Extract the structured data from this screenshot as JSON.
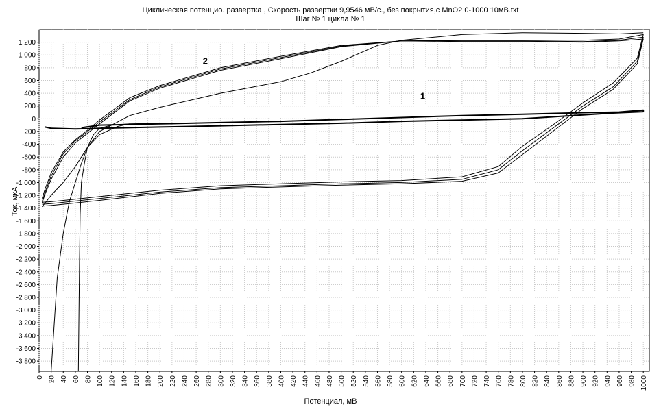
{
  "chart_data": {
    "type": "line",
    "title": "Циклическая потенцио. развертка , Скорость развертки 9,9546 мВ/с., без покрытия,с  MnO2 0-1000 10мВ.txt",
    "subtitle": "Шаг № 1 цикла № 1",
    "xlabel": "Потенциал, мВ",
    "ylabel": "Ток, мкА",
    "xlim": [
      0,
      1010
    ],
    "ylim": [
      -3960,
      1400
    ],
    "grid": true,
    "x_ticks": [
      "0",
      "20",
      "40",
      "60",
      "80",
      "100",
      "120",
      "140",
      "160",
      "180",
      "200",
      "220",
      "240",
      "260",
      "280",
      "300",
      "320",
      "340",
      "360",
      "380",
      "400",
      "420",
      "440",
      "460",
      "480",
      "500",
      "520",
      "540",
      "560",
      "580",
      "600",
      "620",
      "640",
      "660",
      "680",
      "700",
      "720",
      "740",
      "760",
      "780",
      "800",
      "820",
      "840",
      "860",
      "880",
      "900",
      "920",
      "940",
      "960",
      "980",
      "1000"
    ],
    "y_ticks": [
      "1 200",
      "1 000",
      "800",
      "600",
      "400",
      "200",
      "0",
      "-200",
      "-400",
      "-600",
      "-800",
      "-1 000",
      "-1 200",
      "-1 400",
      "-1 600",
      "-1 800",
      "-2 000",
      "-2 200",
      "-2 400",
      "-2 600",
      "-2 800",
      "-3 000",
      "-3 200",
      "-3 400",
      "-3 600",
      "-3 800"
    ],
    "annotations": [
      {
        "text": "2",
        "x": 275,
        "y": 860
      },
      {
        "text": "1",
        "x": 635,
        "y": 310
      }
    ],
    "series": [
      {
        "x": [
          70,
          100,
          200,
          300,
          400,
          500,
          600,
          700,
          800,
          900,
          960,
          1000,
          1000,
          950,
          900,
          800,
          700,
          600,
          500,
          400,
          300,
          200,
          100,
          60,
          20,
          10
        ],
        "y": [
          -140,
          -100,
          -80,
          -60,
          -40,
          -10,
          20,
          50,
          70,
          95,
          105,
          135,
          110,
          90,
          60,
          0,
          -20,
          -40,
          -70,
          -90,
          -110,
          -130,
          -150,
          -160,
          -150,
          -130
        ]
      },
      {
        "x": [
          65,
          66,
          67,
          68,
          70,
          75,
          80,
          90,
          100,
          120,
          150,
          200
        ],
        "y": [
          -3960,
          -3000,
          -2200,
          -1500,
          -1000,
          -700,
          -450,
          -250,
          -150,
          -100,
          -80,
          -70
        ]
      },
      {
        "x": [
          5,
          10,
          20,
          40,
          60,
          80,
          100,
          150,
          200,
          300,
          400,
          500,
          600,
          700,
          800,
          900,
          960,
          1000,
          990,
          950,
          900,
          850,
          800,
          760,
          700,
          600,
          500,
          400,
          300,
          200,
          100,
          50,
          20,
          5
        ],
        "y": [
          -1300,
          -1150,
          -900,
          -550,
          -350,
          -200,
          -50,
          300,
          500,
          780,
          960,
          1140,
          1220,
          1220,
          1220,
          1210,
          1230,
          1280,
          900,
          500,
          200,
          -150,
          -500,
          -800,
          -950,
          -1000,
          -1020,
          -1050,
          -1080,
          -1150,
          -1250,
          -1300,
          -1330,
          -1340
        ]
      },
      {
        "x": [
          5,
          10,
          20,
          40,
          60,
          80,
          100,
          150,
          200,
          300,
          400,
          500,
          600,
          700,
          800,
          900,
          960,
          1000,
          990,
          950,
          900,
          850,
          800,
          760,
          700,
          600,
          500,
          400,
          300,
          200,
          100,
          50,
          20,
          5
        ],
        "y": [
          -1250,
          -1100,
          -850,
          -520,
          -330,
          -180,
          -20,
          330,
          520,
          800,
          980,
          1150,
          1220,
          1230,
          1230,
          1230,
          1250,
          1320,
          950,
          560,
          250,
          -100,
          -430,
          -750,
          -910,
          -970,
          -990,
          -1020,
          -1050,
          -1120,
          -1220,
          -1270,
          -1300,
          -1310
        ]
      },
      {
        "x": [
          5,
          10,
          20,
          40,
          60,
          80,
          100,
          150,
          200,
          300,
          400,
          500,
          600,
          700,
          800,
          900,
          960,
          1000,
          990,
          950,
          900,
          850,
          800,
          760,
          700,
          600,
          500,
          400,
          300,
          200,
          100,
          50,
          20,
          5
        ],
        "y": [
          -1320,
          -1180,
          -950,
          -600,
          -380,
          -230,
          -80,
          280,
          480,
          760,
          940,
          1130,
          1220,
          1210,
          1210,
          1200,
          1220,
          1250,
          860,
          460,
          160,
          -200,
          -560,
          -850,
          -980,
          -1020,
          -1040,
          -1070,
          -1100,
          -1170,
          -1280,
          -1330,
          -1360,
          -1370
        ]
      },
      {
        "x": [
          5,
          20,
          40,
          60,
          80,
          100,
          150,
          200,
          300,
          400,
          450,
          500,
          560,
          600,
          700,
          800,
          900,
          960,
          1000
        ],
        "y": [
          -1380,
          -1200,
          -1000,
          -750,
          -450,
          -200,
          50,
          180,
          400,
          580,
          720,
          900,
          1150,
          1230,
          1320,
          1350,
          1340,
          1330,
          1350
        ]
      },
      {
        "x": [
          20,
          30,
          40,
          50,
          60,
          70,
          80,
          100,
          130,
          150
        ],
        "y": [
          -3960,
          -2500,
          -1800,
          -1300,
          -1000,
          -700,
          -450,
          -250,
          -120,
          -80
        ]
      }
    ]
  }
}
